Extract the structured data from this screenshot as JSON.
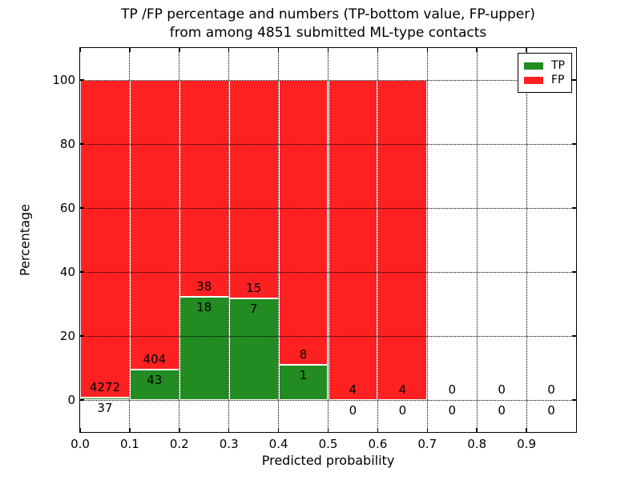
{
  "title": {
    "line1": "TP /FP percentage and numbers (TP-bottom value, FP-upper)",
    "line2": "from among 4851 submitted ML-type contacts"
  },
  "chart_data": {
    "type": "bar",
    "stacked": true,
    "normalized": "each bar totals 100%",
    "title": "TP /FP percentage and numbers (TP-bottom value, FP-upper)\nfrom among 4851 submitted ML-type contacts",
    "xlabel": "Predicted probability",
    "ylabel": "Percentage",
    "xlim": [
      0.0,
      1.0
    ],
    "ylim": [
      -10,
      110
    ],
    "x_ticks": [
      0.0,
      0.1,
      0.2,
      0.3,
      0.4,
      0.5,
      0.6,
      0.7,
      0.8,
      0.9
    ],
    "x_tick_labels": [
      "0.0",
      "0.1",
      "0.2",
      "0.3",
      "0.4",
      "0.5",
      "0.6",
      "0.7",
      "0.8",
      "0.9"
    ],
    "y_ticks": [
      0,
      20,
      40,
      60,
      80,
      100
    ],
    "y_tick_labels": [
      "0",
      "20",
      "40",
      "60",
      "80",
      "100"
    ],
    "grid": "dotted",
    "legend_position": "upper right",
    "series": [
      {
        "name": "TP",
        "color": "#228b22"
      },
      {
        "name": "FP",
        "color": "#ff2121"
      }
    ],
    "bins": [
      {
        "range": [
          0.0,
          0.1
        ],
        "tp": 37,
        "fp": 4272
      },
      {
        "range": [
          0.1,
          0.2
        ],
        "tp": 43,
        "fp": 404
      },
      {
        "range": [
          0.2,
          0.3
        ],
        "tp": 18,
        "fp": 38
      },
      {
        "range": [
          0.3,
          0.4
        ],
        "tp": 7,
        "fp": 15
      },
      {
        "range": [
          0.4,
          0.5
        ],
        "tp": 1,
        "fp": 8
      },
      {
        "range": [
          0.5,
          0.6
        ],
        "tp": 0,
        "fp": 4
      },
      {
        "range": [
          0.6,
          0.7
        ],
        "tp": 0,
        "fp": 4
      },
      {
        "range": [
          0.7,
          0.8
        ],
        "tp": 0,
        "fp": 0
      },
      {
        "range": [
          0.8,
          0.9
        ],
        "tp": 0,
        "fp": 0
      },
      {
        "range": [
          0.9,
          1.0
        ],
        "tp": 0,
        "fp": 0
      }
    ]
  },
  "colors": {
    "tp_green": "#228b22",
    "fp_red": "#ff2121",
    "background": "#ffffff",
    "text": "#000000"
  }
}
